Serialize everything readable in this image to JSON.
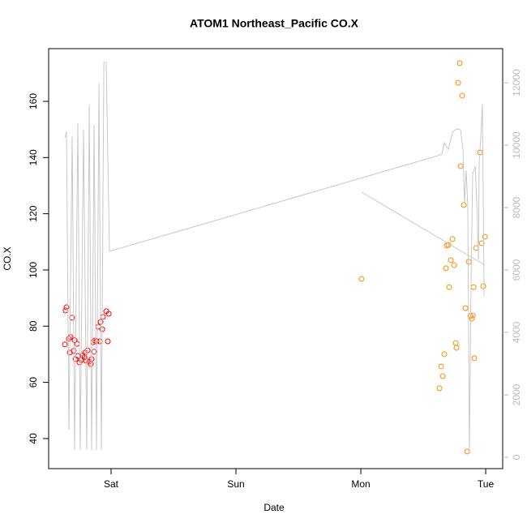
{
  "chart_data": {
    "type": "scatter",
    "title": "ATOM1 Northeast_Pacific CO.X",
    "x_label": "Date",
    "y_label": "CO.X",
    "xlim": [
      -0.5,
      3.136
    ],
    "xticks": [
      {
        "value": 0,
        "label": "Sat"
      },
      {
        "value": 1,
        "label": "Sun"
      },
      {
        "value": 2,
        "label": "Mon"
      },
      {
        "value": 3,
        "label": "Tue"
      }
    ],
    "ylim": [
      29.3,
      178.75
    ],
    "yticks": [
      40,
      60,
      80,
      100,
      120,
      140,
      160
    ],
    "y2lim": [
      -364,
      13091
    ],
    "y2ticks": [
      0,
      2000,
      4000,
      6000,
      8000,
      10000,
      12000
    ],
    "y2_color": "#bbbbbb",
    "series": [
      {
        "type": "scatter",
        "color": "#ff0000",
        "x": [
          -0.37,
          -0.364,
          -0.357,
          -0.338,
          -0.331,
          -0.325,
          -0.312,
          -0.299,
          -0.292,
          -0.286,
          -0.273,
          -0.266,
          -0.253,
          -0.24,
          -0.227,
          -0.214,
          -0.208,
          -0.201,
          -0.188,
          -0.175,
          -0.162,
          -0.156,
          -0.143,
          -0.136,
          -0.13,
          -0.117,
          -0.104,
          -0.091,
          -0.084,
          -0.071,
          -0.065,
          -0.039,
          -0.019,
          -0.026
        ],
        "values": [
          73.5,
          85.6,
          86.7,
          75.5,
          70.6,
          76.1,
          83.0,
          71.2,
          75.0,
          68.3,
          73.7,
          69.4,
          67.1,
          68.0,
          69.7,
          68.9,
          70.6,
          67.7,
          71.4,
          67.4,
          66.5,
          68.3,
          74.3,
          70.9,
          74.9,
          74.6,
          79.8,
          74.6,
          81.5,
          78.9,
          83.3,
          85.3,
          84.4,
          74.6
        ]
      },
      {
        "type": "scatter",
        "color": "#ff8c00",
        "x": [
          2.006,
          2.63,
          2.643,
          2.656,
          2.669,
          2.682,
          2.688,
          2.701,
          2.708,
          2.721,
          2.734,
          2.747,
          2.76,
          2.766,
          2.792,
          2.779,
          2.799,
          2.812,
          2.825,
          2.838,
          2.851,
          2.864,
          2.877,
          2.89,
          2.896,
          2.903,
          2.909,
          2.922,
          2.955,
          2.968,
          2.981,
          2.994
        ],
        "values": [
          96.8,
          57.9,
          65.7,
          62.2,
          70.0,
          100.6,
          108.7,
          108.9,
          93.9,
          103.5,
          111.0,
          101.7,
          74.0,
          72.3,
          173.6,
          166.6,
          136.9,
          162.0,
          123.1,
          86.4,
          35.4,
          102.9,
          83.6,
          82.7,
          83.8,
          93.9,
          68.6,
          107.8,
          141.8,
          109.5,
          94.2,
          111.8
        ]
      },
      {
        "type": "line",
        "axis": "y2",
        "color": "#c8c8c8",
        "x": [
          -0.37,
          -0.357,
          -0.338,
          -0.312,
          -0.292,
          -0.266,
          -0.247,
          -0.221,
          -0.195,
          -0.175,
          -0.156,
          -0.136,
          -0.117,
          -0.097,
          -0.078,
          -0.058,
          -0.039,
          -0.013,
          2.617,
          2.649,
          2.669,
          2.682,
          2.701,
          2.734,
          2.766,
          2.799,
          2.818,
          2.831,
          2.844,
          2.857,
          2.87,
          2.883,
          2.896,
          2.916,
          2.929,
          2.942,
          2.948,
          2.961,
          2.974,
          2.987,
          null,
          2.006,
          2.994
        ],
        "values": [
          10234,
          10416,
          883,
          10286,
          234,
          10701,
          234,
          10494,
          234,
          11299,
          234,
          10649,
          234,
          11974,
          234,
          12649,
          12649,
          6597,
          9662,
          9715,
          10078,
          9974,
          9870,
          10416,
          10519,
          10494,
          9844,
          8156,
          9195,
          8026,
          208,
          5558,
          9065,
          9325,
          8156,
          6338,
          9455,
          10234,
          11325,
          5169,
          null,
          8494,
          6156
        ]
      }
    ]
  }
}
